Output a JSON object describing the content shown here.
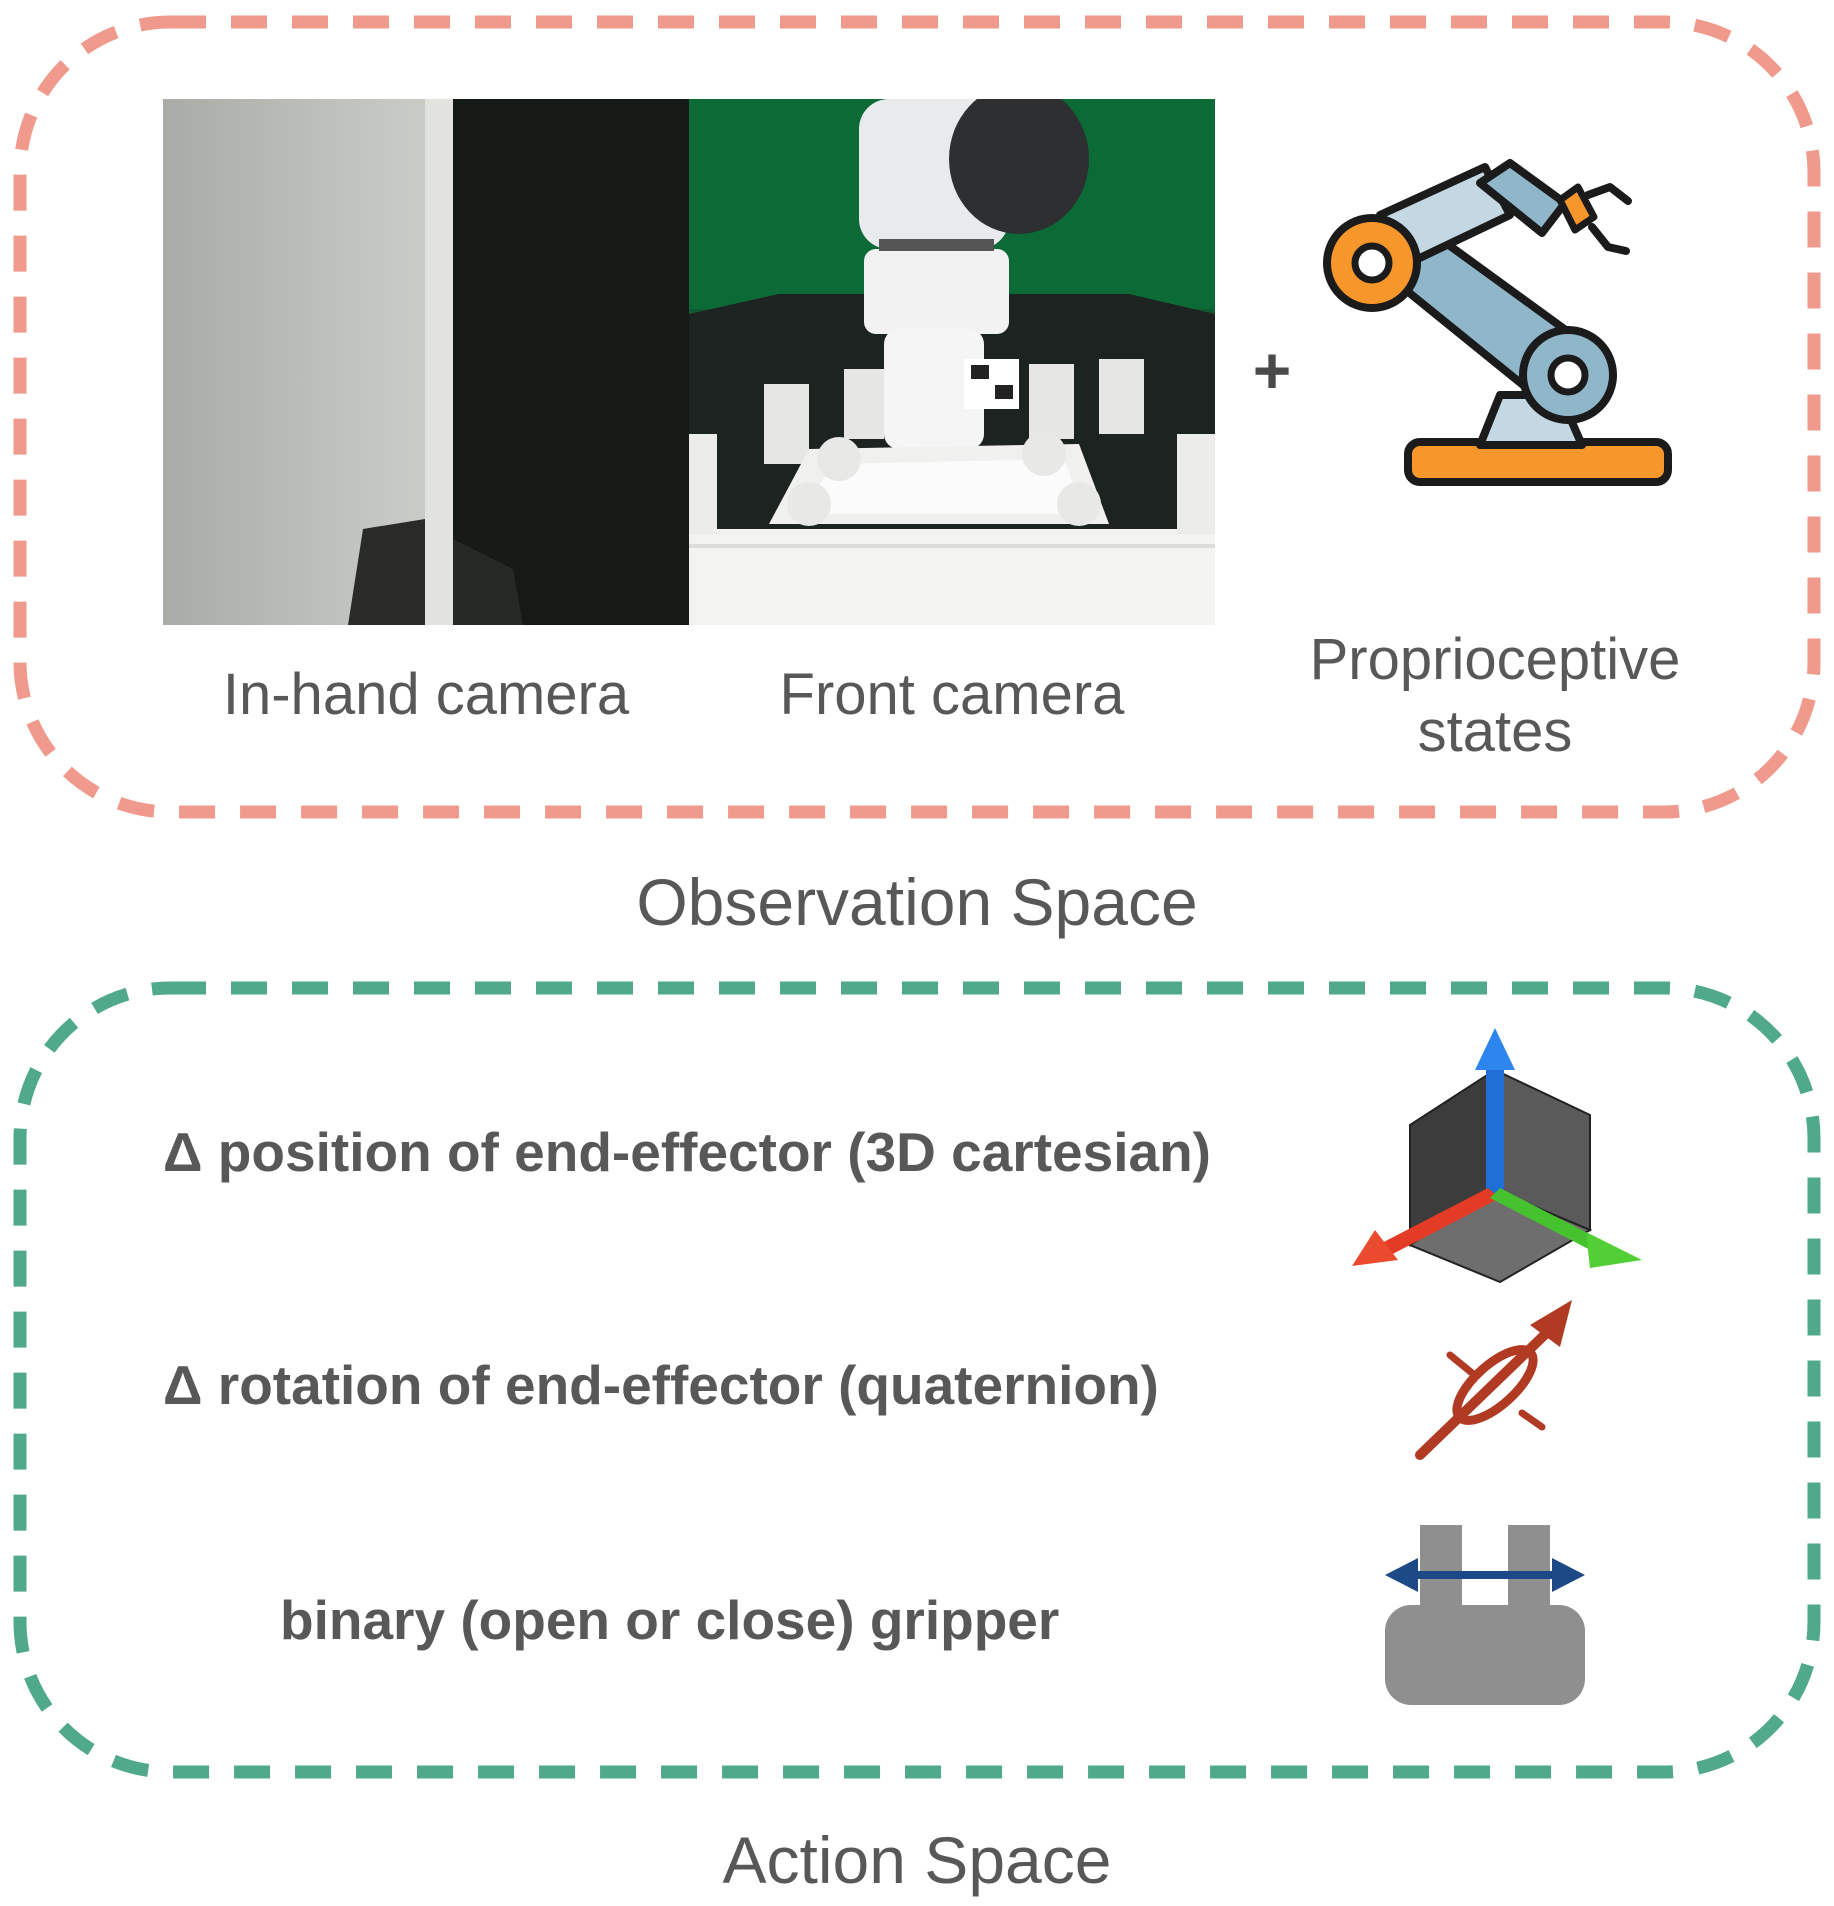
{
  "observation": {
    "title": "Observation Space",
    "plus": "+",
    "inputs": [
      {
        "label": "In-hand camera"
      },
      {
        "label": "Front camera"
      },
      {
        "label": "Proprioceptive states"
      }
    ]
  },
  "action": {
    "title": "Action Space",
    "items": [
      {
        "label": "Δ position of end-effector (3D cartesian)",
        "icon": "xyz-axes-icon"
      },
      {
        "label": "Δ rotation of end-effector (quaternion)",
        "icon": "rotation-arrow-icon"
      },
      {
        "label": "binary (open or close) gripper",
        "icon": "gripper-icon"
      }
    ]
  },
  "colors": {
    "observation_border": "#ef9a8c",
    "action_border": "#4fa98a",
    "text": "#585858",
    "robot_orange": "#f7962a",
    "robot_blue": "#8fb6c9"
  }
}
